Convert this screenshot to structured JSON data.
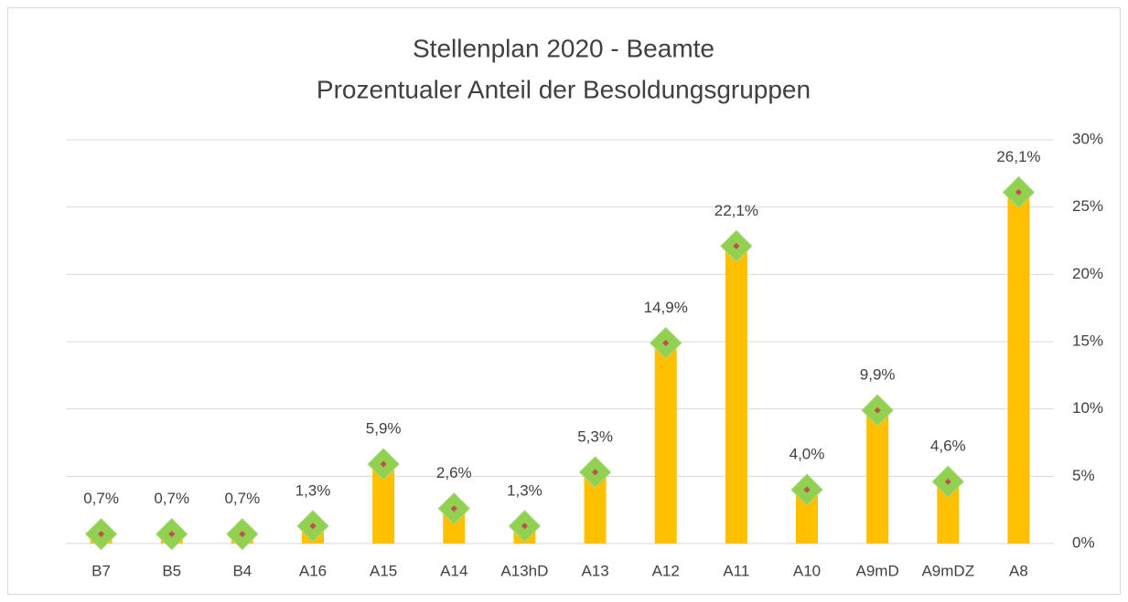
{
  "chart_data": {
    "type": "bar",
    "title": "Stellenplan 2020 - Beamte",
    "subtitle": "Prozentualer Anteil der Besoldungsgruppen",
    "categories": [
      "B7",
      "B5",
      "B4",
      "A16",
      "A15",
      "A14",
      "A13hD",
      "A13",
      "A12",
      "A11",
      "A10",
      "A9mD",
      "A9mDZ",
      "A8"
    ],
    "values": [
      0.7,
      0.7,
      0.7,
      1.3,
      5.9,
      2.6,
      1.3,
      5.3,
      14.9,
      22.1,
      4.0,
      9.9,
      4.6,
      26.1
    ],
    "value_labels": [
      "0,7%",
      "0,7%",
      "0,7%",
      "1,3%",
      "5,9%",
      "2,6%",
      "1,3%",
      "5,3%",
      "14,9%",
      "22,1%",
      "4,0%",
      "9,9%",
      "4,6%",
      "26,1%"
    ],
    "color": "#ffc000",
    "marker_color": "#92d050",
    "ylim": [
      0,
      30
    ],
    "yticks": [
      {
        "value": 0,
        "label": "0%"
      },
      {
        "value": 5,
        "label": "5%"
      },
      {
        "value": 10,
        "label": "10%"
      },
      {
        "value": 15,
        "label": "15%"
      },
      {
        "value": 20,
        "label": "20%"
      },
      {
        "value": 25,
        "label": "25%"
      },
      {
        "value": 30,
        "label": "30%"
      }
    ],
    "grid": true
  }
}
